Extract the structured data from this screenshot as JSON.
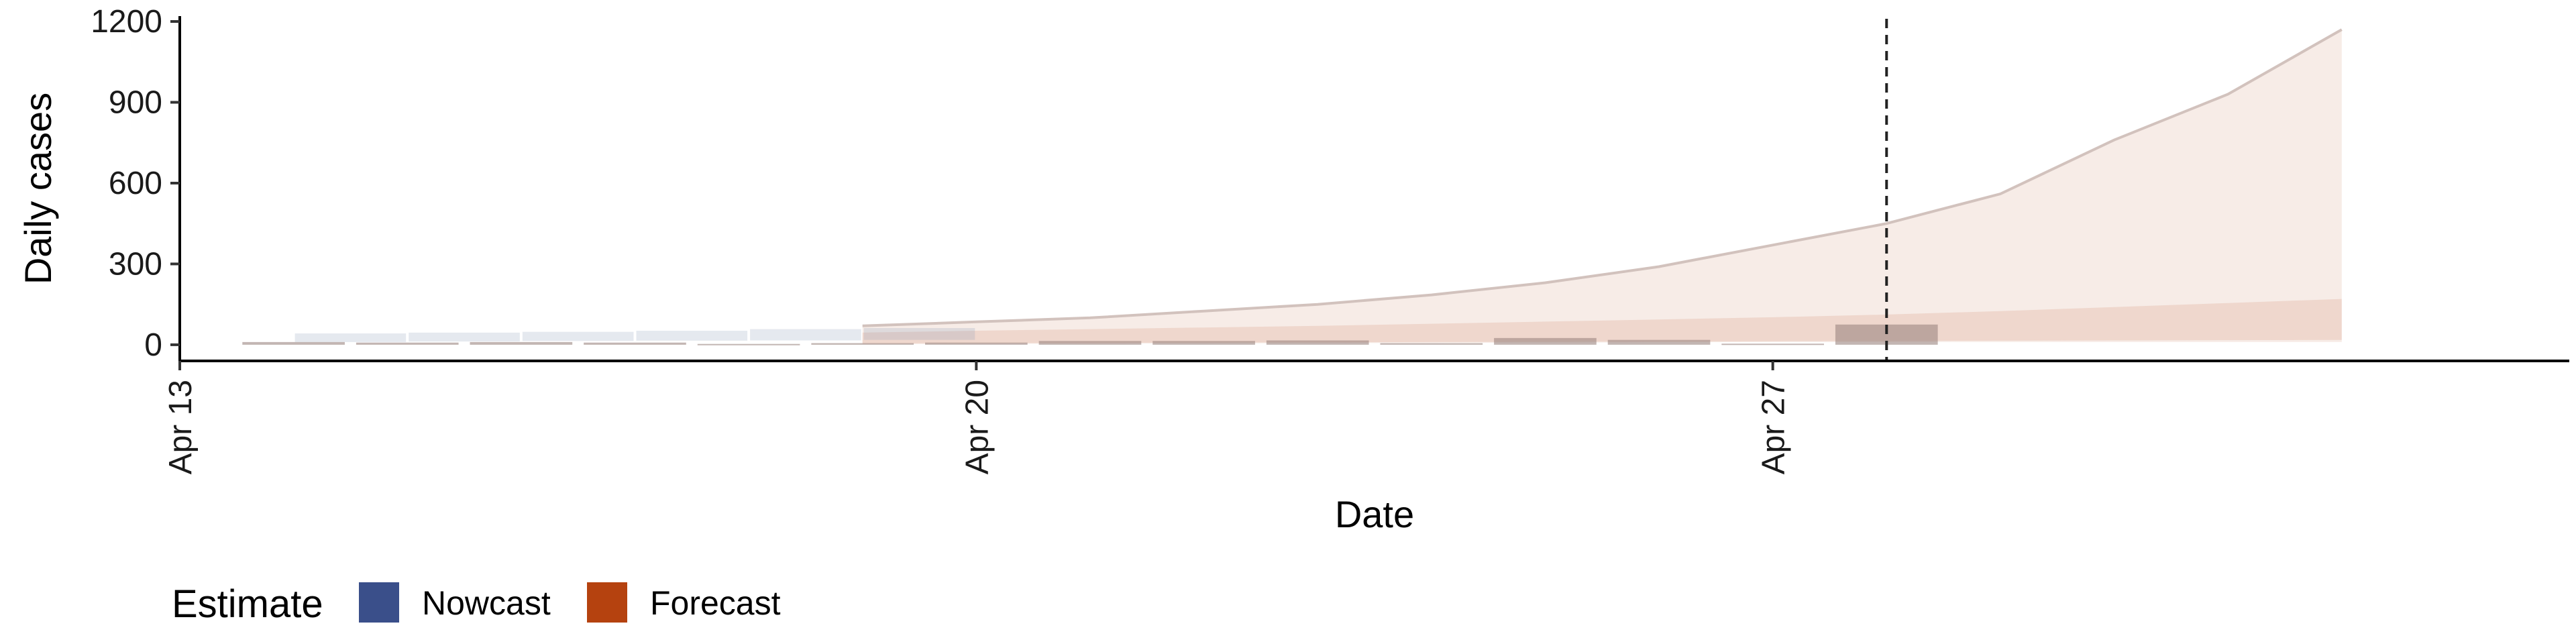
{
  "chart_data": {
    "type": "area",
    "title": "",
    "xlabel": "Date",
    "ylabel": "Daily cases",
    "x_range": [
      "2020-04-13",
      "2020-05-04"
    ],
    "ylim": [
      -60,
      1220
    ],
    "y_ticks": [
      0,
      300,
      600,
      900,
      1200
    ],
    "y_tick_labels": [
      "0",
      "300",
      "600",
      "900",
      "1200"
    ],
    "x_ticks": [
      "2020-04-13",
      "2020-04-20",
      "2020-04-27"
    ],
    "x_tick_labels": [
      "Apr 13",
      "Apr 20",
      "Apr 27"
    ],
    "vline": "2020-04-28",
    "grid": false,
    "legend": {
      "title": "Estimate",
      "position": "bottom-left",
      "entries": [
        {
          "label": "Nowcast",
          "color": "#3a4f8a"
        },
        {
          "label": "Forecast",
          "color": "#b5420f"
        }
      ]
    },
    "nowcast_bands": [
      {
        "x": "2020-04-14",
        "x_end": "2020-04-15",
        "upper": 42,
        "lower": 10
      },
      {
        "x": "2020-04-15",
        "x_end": "2020-04-16",
        "upper": 45,
        "lower": 12
      },
      {
        "x": "2020-04-16",
        "x_end": "2020-04-17",
        "upper": 48,
        "lower": 14
      },
      {
        "x": "2020-04-17",
        "x_end": "2020-04-18",
        "upper": 52,
        "lower": 15
      },
      {
        "x": "2020-04-18",
        "x_end": "2020-04-19",
        "upper": 58,
        "lower": 16
      },
      {
        "x": "2020-04-19",
        "x_end": "2020-04-20",
        "upper": 62,
        "lower": 18
      }
    ],
    "forecast_band_outer": {
      "x": [
        "2020-04-19",
        "2020-04-20",
        "2020-04-21",
        "2020-04-22",
        "2020-04-23",
        "2020-04-24",
        "2020-04-25",
        "2020-04-26",
        "2020-04-27",
        "2020-04-28",
        "2020-04-29",
        "2020-04-30",
        "2020-05-01",
        "2020-05-02"
      ],
      "upper": [
        70,
        85,
        100,
        125,
        150,
        185,
        230,
        290,
        370,
        450,
        560,
        760,
        930,
        1170
      ],
      "lower": [
        2,
        3,
        4,
        5,
        6,
        7,
        8,
        9,
        10,
        10,
        10,
        10,
        10,
        10
      ]
    },
    "forecast_band_inner": {
      "x": [
        "2020-04-19",
        "2020-04-20",
        "2020-04-21",
        "2020-04-22",
        "2020-04-23",
        "2020-04-24",
        "2020-04-25",
        "2020-04-26",
        "2020-04-27",
        "2020-04-28",
        "2020-04-29",
        "2020-04-30",
        "2020-05-01",
        "2020-05-02"
      ],
      "upper": [
        45,
        52,
        58,
        64,
        70,
        78,
        86,
        94,
        102,
        112,
        125,
        140,
        155,
        170
      ],
      "lower": [
        5,
        6,
        7,
        8,
        9,
        10,
        11,
        12,
        13,
        14,
        15,
        16,
        17,
        18
      ]
    },
    "observed_bars": [
      {
        "date": "2020-04-14",
        "value": 10
      },
      {
        "date": "2020-04-15",
        "value": 8
      },
      {
        "date": "2020-04-16",
        "value": 10
      },
      {
        "date": "2020-04-17",
        "value": 8
      },
      {
        "date": "2020-04-18",
        "value": 3
      },
      {
        "date": "2020-04-19",
        "value": 6
      },
      {
        "date": "2020-04-20",
        "value": 8
      },
      {
        "date": "2020-04-21",
        "value": 14
      },
      {
        "date": "2020-04-22",
        "value": 14
      },
      {
        "date": "2020-04-23",
        "value": 16
      },
      {
        "date": "2020-04-24",
        "value": 6
      },
      {
        "date": "2020-04-25",
        "value": 25
      },
      {
        "date": "2020-04-26",
        "value": 18
      },
      {
        "date": "2020-04-27",
        "value": 4
      },
      {
        "date": "2020-04-28",
        "value": 75
      }
    ]
  }
}
